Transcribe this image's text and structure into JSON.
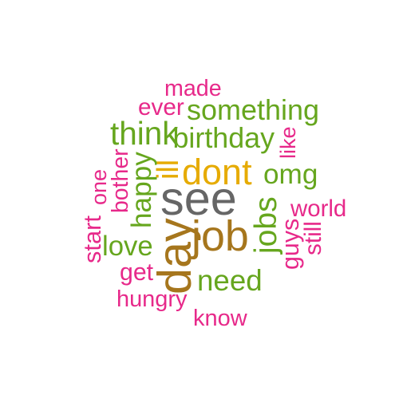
{
  "palette": {
    "pink": "#e7298a",
    "green": "#66a61e",
    "gold": "#e6ab02",
    "brown": "#a6761d",
    "gray": "#666666"
  },
  "words": [
    {
      "text": "made",
      "color": "pink",
      "vertical": false
    },
    {
      "text": "ever",
      "color": "pink",
      "vertical": false
    },
    {
      "text": "something",
      "color": "green",
      "vertical": false
    },
    {
      "text": "think",
      "color": "green",
      "vertical": false
    },
    {
      "text": "birthday",
      "color": "green",
      "vertical": false
    },
    {
      "text": "like",
      "color": "pink",
      "vertical": true
    },
    {
      "text": "ill",
      "color": "gold",
      "vertical": true
    },
    {
      "text": "dont",
      "color": "gold",
      "vertical": false
    },
    {
      "text": "omg",
      "color": "green",
      "vertical": false
    },
    {
      "text": "one",
      "color": "pink",
      "vertical": true
    },
    {
      "text": "bother",
      "color": "pink",
      "vertical": true
    },
    {
      "text": "happy",
      "color": "green",
      "vertical": true
    },
    {
      "text": "see",
      "color": "gray",
      "vertical": false
    },
    {
      "text": "world",
      "color": "pink",
      "vertical": false
    },
    {
      "text": "job",
      "color": "brown",
      "vertical": false
    },
    {
      "text": "jobs",
      "color": "green",
      "vertical": true
    },
    {
      "text": "guys",
      "color": "pink",
      "vertical": true
    },
    {
      "text": "still",
      "color": "pink",
      "vertical": true
    },
    {
      "text": "start",
      "color": "pink",
      "vertical": true
    },
    {
      "text": "love",
      "color": "green",
      "vertical": false
    },
    {
      "text": "day",
      "color": "brown",
      "vertical": true
    },
    {
      "text": "get",
      "color": "pink",
      "vertical": false
    },
    {
      "text": "need",
      "color": "green",
      "vertical": false
    },
    {
      "text": "hungry",
      "color": "pink",
      "vertical": false
    },
    {
      "text": "know",
      "color": "pink",
      "vertical": false
    }
  ]
}
